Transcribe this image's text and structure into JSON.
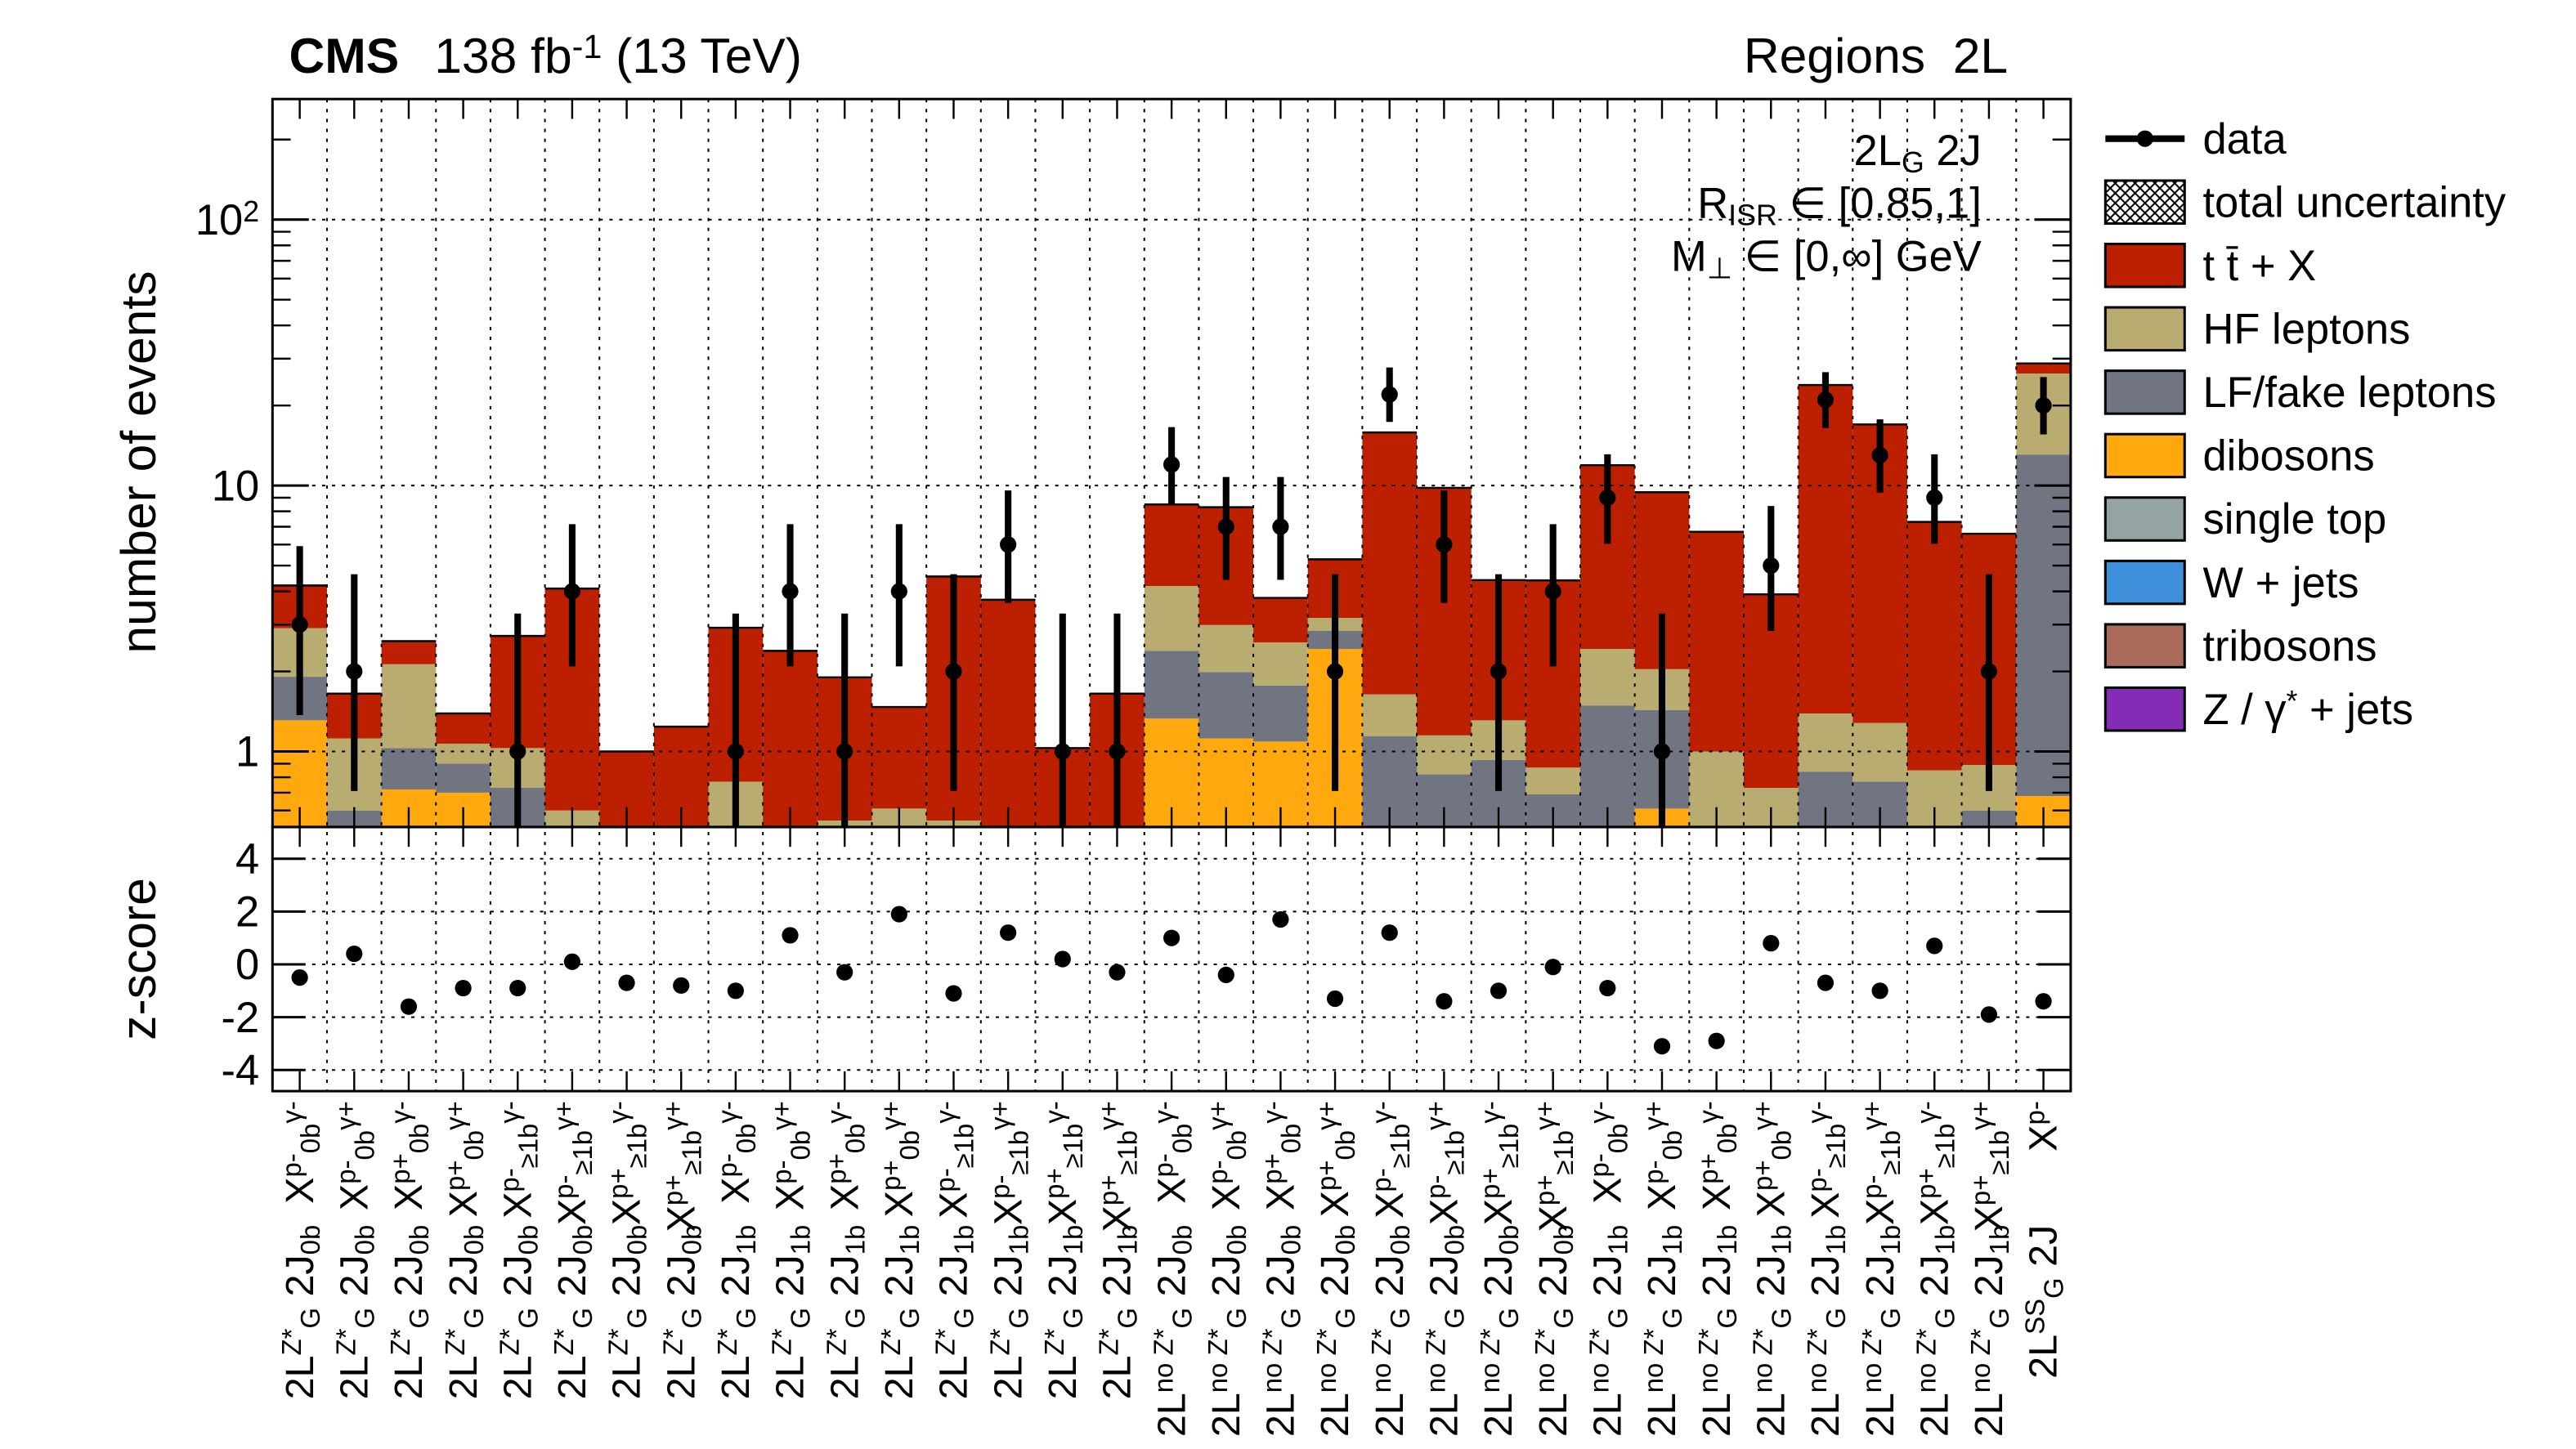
{
  "chart_data": {
    "type": "stacked_histogram",
    "title": "CMS",
    "subtitle": "138 fb^{-1} (13 TeV)",
    "title_right": "Regions  2L",
    "ylabel": "number of events",
    "log_scale": true,
    "grid": true,
    "legend": "right-outside",
    "annotations": [
      "2L_{G} 2J",
      "R_{ISR} ∈ [0.85,1]",
      "M_{⊥} ∈ [0,∞] GeV"
    ],
    "categories": [
      "X^{p-}_{0b}^{γ-}",
      "X^{p-}_{0b}^{γ+}",
      "X^{p+}_{0b}^{γ-}",
      "X^{p+}_{0b}^{γ+}",
      "X^{p-}_{≥1b}^{γ-}",
      "X^{p-}_{≥1b}^{γ+}",
      "X^{p+}_{≥1b}^{γ-}",
      "X^{p+}_{≥1b}^{γ+}",
      "X^{p-}_{0b}^{γ-}",
      "X^{p-}_{0b}^{γ+}",
      "X^{p+}_{0b}^{γ-}",
      "X^{p+}_{0b}^{γ+}",
      "X^{p-}_{≥1b}^{γ-}",
      "X^{p-}_{≥1b}^{γ+}",
      "X^{p+}_{≥1b}^{γ-}",
      "X^{p+}_{≥1b}^{γ+}",
      "X^{p-}_{0b}^{γ-}",
      "X^{p-}_{0b}^{γ+}",
      "X^{p+}_{0b}^{γ-}",
      "X^{p+}_{0b}^{γ+}",
      "X^{p-}_{≥1b}^{γ-}",
      "X^{p-}_{≥1b}^{γ+}",
      "X^{p+}_{≥1b}^{γ-}",
      "X^{p+}_{≥1b}^{γ+}",
      "X^{p-}_{0b}^{γ-}",
      "X^{p-}_{0b}^{γ+}",
      "X^{p+}_{0b}^{γ-}",
      "X^{p+}_{0b}^{γ+}",
      "X^{p-}_{≥1b}^{γ-}",
      "X^{p-}_{≥1b}^{γ+}",
      "X^{p+}_{≥1b}^{γ-}",
      "X^{p+}_{≥1b}^{γ+}",
      "X^{p-}"
    ],
    "category_groups": [
      "2L^{Z*}_{G} 2J_{0b}",
      "2L^{Z*}_{G} 2J_{0b}",
      "2L^{Z*}_{G} 2J_{0b}",
      "2L^{Z*}_{G} 2J_{0b}",
      "2L^{Z*}_{G} 2J_{0b}",
      "2L^{Z*}_{G} 2J_{0b}",
      "2L^{Z*}_{G} 2J_{0b}",
      "2L^{Z*}_{G} 2J_{0b}",
      "2L^{Z*}_{G} 2J_{1b}",
      "2L^{Z*}_{G} 2J_{1b}",
      "2L^{Z*}_{G} 2J_{1b}",
      "2L^{Z*}_{G} 2J_{1b}",
      "2L^{Z*}_{G} 2J_{1b}",
      "2L^{Z*}_{G} 2J_{1b}",
      "2L^{Z*}_{G} 2J_{1b}",
      "2L^{Z*}_{G} 2J_{1b}",
      "2L^{no Z*}_{G} 2J_{0b}",
      "2L^{no Z*}_{G} 2J_{0b}",
      "2L^{no Z*}_{G} 2J_{0b}",
      "2L^{no Z*}_{G} 2J_{0b}",
      "2L^{no Z*}_{G} 2J_{0b}",
      "2L^{no Z*}_{G} 2J_{0b}",
      "2L^{no Z*}_{G} 2J_{0b}",
      "2L^{no Z*}_{G} 2J_{0b}",
      "2L^{no Z*}_{G} 2J_{1b}",
      "2L^{no Z*}_{G} 2J_{1b}",
      "2L^{no Z*}_{G} 2J_{1b}",
      "2L^{no Z*}_{G} 2J_{1b}",
      "2L^{no Z*}_{G} 2J_{1b}",
      "2L^{no Z*}_{G} 2J_{1b}",
      "2L^{no Z*}_{G} 2J_{1b}",
      "2L^{no Z*}_{G} 2J_{1b}",
      "2L^{SS}_{G} 2J"
    ],
    "ylim": [
      0.52,
      284
    ],
    "yticks": [
      1,
      10,
      {
        "value": 100,
        "label": "10^{2}"
      }
    ],
    "data": {
      "name": "data",
      "color": "#000000",
      "values": [
        3,
        2,
        0,
        0,
        1,
        4,
        0,
        0,
        1,
        4,
        1,
        4,
        2,
        6,
        1,
        1,
        12,
        7,
        7,
        2,
        22,
        6,
        2,
        4,
        9,
        1,
        0,
        5,
        21,
        13,
        9,
        2,
        20
      ],
      "errors_low": [
        1.63,
        1.29,
        null,
        null,
        0.83,
        1.91,
        null,
        null,
        0.83,
        1.91,
        0.83,
        1.91,
        1.29,
        2.38,
        0.83,
        0.83,
        3.46,
        2.58,
        2.58,
        1.29,
        4.65,
        2.38,
        1.29,
        1.91,
        2.96,
        0.83,
        null,
        2.16,
        4.53,
        3.6,
        2.96,
        1.29,
        4.43
      ],
      "errors_high": [
        2.92,
        2.64,
        null,
        null,
        2.3,
        3.16,
        null,
        null,
        2.3,
        3.16,
        2.3,
        3.16,
        2.64,
        3.58,
        2.3,
        2.3,
        4.59,
        3.77,
        3.77,
        2.64,
        5.81,
        3.58,
        2.64,
        3.16,
        4.11,
        2.3,
        null,
        3.38,
        5.69,
        4.73,
        4.11,
        2.64,
        5.59
      ]
    },
    "uncertainty_name": "total uncertainty",
    "series": [
      {
        "name": "t t̄ + X",
        "color": "#bd1f01",
        "values": [
          1.3,
          0.53,
          0.47,
          0.32,
          1.69,
          3.5,
          1.0,
          1.24,
          2.15,
          2.39,
          1.35,
          0.86,
          4.0,
          3.72,
          1.03,
          1.65,
          4.3,
          5.3,
          1.21,
          2.1,
          14.2,
          8.65,
          3.1,
          3.53,
          9.5,
          7.4,
          5.7,
          3.17,
          22.5,
          15.7,
          6.45,
          5.7,
          2.4
        ]
      },
      {
        "name": "HF leptons",
        "color": "#b9ac70",
        "values": [
          1.0,
          0.52,
          1.1,
          0.17,
          0.3,
          0.6,
          0,
          0,
          0.77,
          0,
          0.55,
          0.61,
          0.55,
          0,
          0,
          0,
          1.8,
          1.0,
          0.8,
          0.34,
          0.5,
          0.33,
          0.38,
          0.18,
          0.94,
          0.61,
          1.0,
          0.73,
          0.55,
          0.51,
          0.85,
          0.29,
          13.3
        ]
      },
      {
        "name": "LF/fake leptons",
        "color": "#717581",
        "values": [
          0.6,
          0.6,
          0.31,
          0.2,
          0.73,
          0,
          0,
          0,
          0,
          0,
          0,
          0,
          0,
          0,
          0,
          0,
          1.06,
          0.87,
          0.68,
          0.41,
          1.14,
          0.82,
          0.93,
          0.69,
          1.49,
          0.82,
          0,
          0,
          0.84,
          0.77,
          0,
          0.6,
          12.4
        ]
      },
      {
        "name": "dibosons",
        "color": "#ffa90e",
        "values": [
          1.31,
          0,
          0.72,
          0.7,
          0,
          0,
          0,
          0,
          0,
          0,
          0,
          0,
          0,
          0,
          0,
          0,
          1.33,
          1.12,
          1.09,
          2.43,
          0,
          0,
          0,
          0,
          0,
          0.61,
          0,
          0,
          0,
          0,
          0,
          0,
          0.68
        ]
      },
      {
        "name": "single top",
        "color": "#94a4a2",
        "values": [
          0,
          0,
          0,
          0,
          0,
          0,
          0,
          0,
          0,
          0,
          0,
          0,
          0,
          0,
          0,
          0,
          0,
          0,
          0,
          0,
          0,
          0,
          0,
          0,
          0,
          0,
          0,
          0,
          0,
          0,
          0,
          0,
          0
        ]
      },
      {
        "name": "W + jets",
        "color": "#3f90da",
        "values": [
          0,
          0,
          0,
          0,
          0,
          0,
          0,
          0,
          0,
          0,
          0,
          0,
          0,
          0,
          0,
          0,
          0,
          0,
          0,
          0,
          0,
          0,
          0,
          0,
          0,
          0,
          0,
          0,
          0,
          0,
          0,
          0,
          0
        ]
      },
      {
        "name": "tribosons",
        "color": "#a96b59",
        "values": [
          0,
          0,
          0,
          0,
          0,
          0,
          0,
          0,
          0,
          0,
          0,
          0,
          0,
          0,
          0,
          0,
          0,
          0,
          0,
          0,
          0,
          0,
          0,
          0,
          0,
          0,
          0,
          0,
          0,
          0,
          0,
          0,
          0
        ]
      },
      {
        "name": "Z / γ^{*} + jets",
        "color": "#832db6",
        "values": [
          0,
          0,
          0,
          0,
          0,
          0,
          0,
          0,
          0,
          0,
          0,
          0,
          0,
          0,
          0,
          0,
          0,
          0,
          0,
          0,
          0,
          0,
          0,
          0,
          0,
          0,
          0,
          0,
          0,
          0,
          0,
          0,
          0
        ]
      }
    ],
    "zscore": {
      "ylabel": "z-score",
      "values": [
        -0.5,
        0.4,
        -1.6,
        -0.9,
        -0.9,
        0.1,
        -0.7,
        -0.8,
        -1.0,
        1.1,
        -0.3,
        1.9,
        -1.1,
        1.2,
        0.2,
        -0.3,
        1.0,
        -0.4,
        1.7,
        -1.3,
        1.2,
        -1.4,
        -1.0,
        -0.1,
        -0.9,
        -3.1,
        -2.9,
        0.8,
        -0.7,
        -1.0,
        0.7,
        -1.9,
        -1.4
      ],
      "ylim": [
        -4.8,
        5.2
      ],
      "yticks": [
        -4,
        -2,
        0,
        2,
        4
      ]
    }
  }
}
